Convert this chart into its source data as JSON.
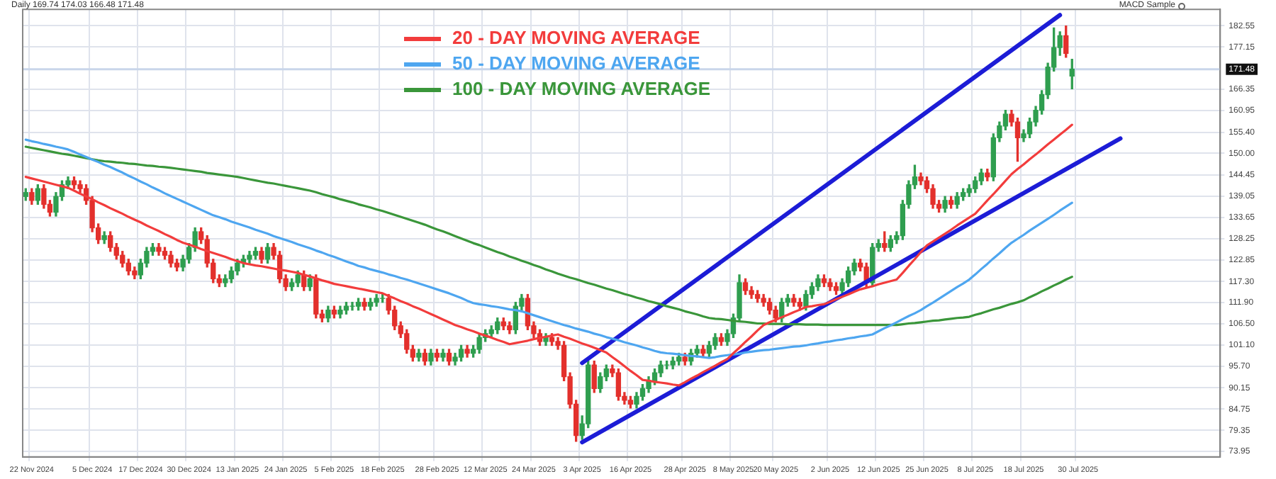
{
  "chart_data": {
    "type": "candlestick",
    "title": "Daily 169.74 174.03 166.48 171.48",
    "annotations": [
      "MACD Sample"
    ],
    "categories": [
      null,
      "22 Nov 2024",
      null,
      null,
      null,
      null,
      null,
      null,
      null,
      null,
      null,
      "5 Dec 2024",
      null,
      null,
      null,
      null,
      null,
      null,
      null,
      "17 Dec 2024",
      null,
      null,
      null,
      null,
      null,
      null,
      null,
      "30 Dec 2024",
      null,
      null,
      null,
      null,
      null,
      null,
      null,
      "13 Jan 2025",
      null,
      null,
      null,
      null,
      null,
      null,
      null,
      "24 Jan 2025",
      null,
      null,
      null,
      null,
      null,
      null,
      null,
      "5 Feb 2025",
      null,
      null,
      null,
      null,
      null,
      null,
      null,
      "18 Feb 2025",
      null,
      null,
      null,
      null,
      null,
      null,
      null,
      null,
      "28 Feb 2025",
      null,
      null,
      null,
      null,
      null,
      null,
      null,
      "12 Mar 2025",
      null,
      null,
      null,
      null,
      null,
      null,
      null,
      "24 Mar 2025",
      null,
      null,
      null,
      null,
      null,
      null,
      null,
      "3 Apr 2025",
      null,
      null,
      null,
      null,
      null,
      null,
      null,
      "16 Apr 2025",
      null,
      null,
      null,
      null,
      null,
      null,
      null,
      null,
      "28 Apr 2025",
      null,
      null,
      null,
      null,
      null,
      null,
      null,
      "8 May 2025",
      null,
      null,
      null,
      null,
      null,
      null,
      "20 May 2025",
      null,
      null,
      null,
      null,
      null,
      null,
      null,
      null,
      "2 Jun 2025",
      null,
      null,
      null,
      null,
      null,
      null,
      null,
      "12 Jun 2025",
      null,
      null,
      null,
      null,
      null,
      null,
      null,
      "25 Jun 2025",
      null,
      null,
      null,
      null,
      null,
      null,
      null,
      "8 Jul 2025",
      null,
      null,
      null,
      null,
      null,
      null,
      null,
      "18 Jul 2025",
      null,
      null,
      null,
      null,
      null,
      null,
      null,
      null,
      "30 Jul 2025",
      null,
      null,
      null,
      null,
      null,
      null,
      null,
      null,
      null,
      null,
      null,
      null,
      null,
      null,
      null,
      null,
      null,
      null,
      null,
      null,
      null,
      null,
      null
    ],
    "ohlc": [
      [
        139,
        141,
        138,
        140
      ],
      [
        140,
        141,
        137,
        138
      ],
      [
        138,
        142,
        137,
        141
      ],
      [
        141,
        142,
        136,
        137
      ],
      [
        137,
        138,
        134,
        135
      ],
      [
        135,
        140,
        134,
        139
      ],
      [
        139,
        143,
        138,
        142
      ],
      [
        142,
        144,
        141,
        143
      ],
      [
        143,
        144,
        141,
        142
      ],
      [
        142,
        143,
        140,
        141
      ],
      [
        141,
        142,
        137,
        138
      ],
      [
        138,
        139,
        130,
        131
      ],
      [
        131,
        132,
        127,
        128
      ],
      [
        128,
        130,
        127,
        129
      ],
      [
        129,
        130,
        125,
        126
      ],
      [
        126,
        127,
        123,
        124
      ],
      [
        124,
        125,
        121,
        122
      ],
      [
        122,
        123,
        119,
        120
      ],
      [
        120,
        121,
        118,
        119
      ],
      [
        119,
        123,
        118,
        122
      ],
      [
        122,
        126,
        121,
        125
      ],
      [
        125,
        127,
        124,
        126
      ],
      [
        126,
        127,
        124,
        125
      ],
      [
        125,
        126,
        123,
        124
      ],
      [
        124,
        125,
        121,
        122
      ],
      [
        122,
        123,
        120,
        121
      ],
      [
        121,
        124,
        120,
        123
      ],
      [
        123,
        127,
        122,
        126
      ],
      [
        126,
        131,
        125,
        130
      ],
      [
        130,
        131,
        127,
        128
      ],
      [
        128,
        129,
        121,
        122
      ],
      [
        122,
        123,
        117,
        118
      ],
      [
        118,
        119,
        116,
        117
      ],
      [
        117,
        119,
        116,
        118
      ],
      [
        118,
        121,
        117,
        120
      ],
      [
        120,
        123,
        119,
        122
      ],
      [
        122,
        124,
        121,
        123
      ],
      [
        123,
        125,
        122,
        124
      ],
      [
        124,
        126,
        123,
        125
      ],
      [
        125,
        126,
        122,
        123
      ],
      [
        123,
        127,
        122,
        126
      ],
      [
        126,
        127,
        123,
        124
      ],
      [
        124,
        125,
        117,
        118
      ],
      [
        118,
        119,
        115,
        116
      ],
      [
        116,
        118,
        115,
        117
      ],
      [
        117,
        120,
        116,
        119
      ],
      [
        119,
        120,
        115,
        116
      ],
      [
        116,
        119,
        115,
        118
      ],
      [
        118,
        119,
        108,
        109
      ],
      [
        109,
        110,
        107,
        108
      ],
      [
        108,
        111,
        107,
        110
      ],
      [
        110,
        111,
        108,
        109
      ],
      [
        109,
        111,
        108,
        110
      ],
      [
        110,
        112,
        109,
        111
      ],
      [
        111,
        112,
        110,
        111
      ],
      [
        111,
        113,
        110,
        112
      ],
      [
        112,
        113,
        110,
        111
      ],
      [
        111,
        113,
        110,
        112
      ],
      [
        112,
        114,
        111,
        113
      ],
      [
        113,
        114,
        112,
        113
      ],
      [
        113,
        114,
        109,
        110
      ],
      [
        110,
        111,
        105,
        106
      ],
      [
        106,
        107,
        103,
        104
      ],
      [
        104,
        105,
        99,
        100
      ],
      [
        100,
        101,
        97,
        98
      ],
      [
        98,
        100,
        97,
        99
      ],
      [
        99,
        100,
        96,
        97
      ],
      [
        97,
        100,
        96,
        99
      ],
      [
        99,
        100,
        97,
        98
      ],
      [
        98,
        100,
        97,
        99
      ],
      [
        99,
        100,
        96,
        97
      ],
      [
        97,
        99,
        96,
        98
      ],
      [
        98,
        101,
        97,
        100
      ],
      [
        100,
        101,
        98,
        99
      ],
      [
        99,
        101,
        98,
        100
      ],
      [
        100,
        104,
        99,
        103
      ],
      [
        103,
        105,
        102,
        104
      ],
      [
        104,
        106,
        103,
        105
      ],
      [
        105,
        108,
        104,
        107
      ],
      [
        107,
        108,
        105,
        106
      ],
      [
        106,
        107,
        104,
        105
      ],
      [
        105,
        112,
        104,
        111
      ],
      [
        111,
        114,
        110,
        113
      ],
      [
        113,
        114,
        105,
        106
      ],
      [
        106,
        107,
        103,
        104
      ],
      [
        104,
        105,
        101,
        102
      ],
      [
        102,
        104,
        101,
        103
      ],
      [
        103,
        104,
        101,
        102
      ],
      [
        102,
        103,
        100,
        101
      ],
      [
        101,
        102,
        92,
        93
      ],
      [
        93,
        94,
        85,
        86
      ],
      [
        86,
        87,
        76.5,
        78
      ],
      [
        78,
        83,
        77,
        81
      ],
      [
        81,
        97,
        80,
        96
      ],
      [
        96,
        97,
        89,
        90
      ],
      [
        90,
        94,
        89,
        93
      ],
      [
        93,
        96,
        92,
        95
      ],
      [
        95,
        96,
        93,
        94
      ],
      [
        94,
        95,
        87,
        88
      ],
      [
        88,
        89,
        86,
        87
      ],
      [
        87,
        88,
        85,
        86
      ],
      [
        86,
        89,
        85,
        88
      ],
      [
        88,
        91,
        87,
        90
      ],
      [
        90,
        93,
        89,
        92
      ],
      [
        92,
        95,
        91,
        94
      ],
      [
        94,
        97,
        93,
        96
      ],
      [
        96,
        97,
        95,
        96
      ],
      [
        96,
        98,
        95,
        97
      ],
      [
        97,
        99,
        96,
        98
      ],
      [
        98,
        99,
        96,
        97
      ],
      [
        97,
        100,
        96,
        99
      ],
      [
        99,
        101,
        98,
        100
      ],
      [
        100,
        101,
        98,
        99
      ],
      [
        99,
        102,
        98,
        101
      ],
      [
        101,
        104,
        100,
        103
      ],
      [
        103,
        104,
        101,
        102
      ],
      [
        102,
        105,
        101,
        104
      ],
      [
        104,
        109,
        103,
        108
      ],
      [
        108,
        119,
        107,
        117
      ],
      [
        117,
        118,
        114,
        115
      ],
      [
        115,
        116,
        113,
        114
      ],
      [
        114,
        115,
        112,
        113
      ],
      [
        113,
        114,
        111,
        112
      ],
      [
        112,
        113,
        109,
        110
      ],
      [
        110,
        111,
        107,
        108
      ],
      [
        108,
        113,
        107,
        112
      ],
      [
        112,
        114,
        111,
        113
      ],
      [
        113,
        114,
        111,
        112
      ],
      [
        112,
        113,
        110,
        111
      ],
      [
        111,
        115,
        110,
        114
      ],
      [
        114,
        117,
        113,
        116
      ],
      [
        116,
        119,
        115,
        118
      ],
      [
        118,
        119,
        116,
        117
      ],
      [
        117,
        118,
        115,
        116
      ],
      [
        116,
        117,
        114,
        115
      ],
      [
        115,
        118,
        114,
        117
      ],
      [
        117,
        121,
        116,
        120
      ],
      [
        120,
        123,
        119,
        122
      ],
      [
        122,
        123,
        120,
        121
      ],
      [
        121,
        122,
        116,
        117
      ],
      [
        117,
        127,
        116,
        126
      ],
      [
        126,
        128,
        125,
        127
      ],
      [
        127,
        130,
        125,
        126
      ],
      [
        126,
        129,
        125,
        128
      ],
      [
        128,
        130,
        127,
        129
      ],
      [
        129,
        138,
        128,
        137
      ],
      [
        137,
        143,
        136,
        142
      ],
      [
        142,
        147,
        141,
        144
      ],
      [
        144,
        145,
        142,
        143
      ],
      [
        143,
        144,
        140,
        141
      ],
      [
        141,
        142,
        136,
        137
      ],
      [
        137,
        138,
        135,
        136
      ],
      [
        136,
        139,
        135,
        138
      ],
      [
        138,
        139,
        136,
        137
      ],
      [
        137,
        140,
        136,
        139
      ],
      [
        139,
        141,
        138,
        140
      ],
      [
        140,
        142,
        139,
        141
      ],
      [
        141,
        144,
        140,
        143
      ],
      [
        143,
        146,
        142,
        145
      ],
      [
        145,
        146,
        143,
        144
      ],
      [
        144,
        155,
        143,
        154
      ],
      [
        154,
        158,
        153,
        157
      ],
      [
        157,
        161,
        156,
        160
      ],
      [
        160,
        161,
        157,
        158
      ],
      [
        158,
        159,
        148,
        154
      ],
      [
        154,
        156,
        153,
        155
      ],
      [
        155,
        159,
        154,
        158
      ],
      [
        158,
        162,
        157,
        161
      ],
      [
        161,
        166,
        160,
        165
      ],
      [
        165,
        173,
        164,
        172
      ],
      [
        172,
        182,
        171,
        177
      ],
      [
        177,
        181,
        175,
        180
      ],
      [
        180,
        182.5,
        174.5,
        175.5
      ],
      [
        169.74,
        174.03,
        166.48,
        171.48
      ],
      null,
      null,
      null,
      null,
      null,
      null,
      null,
      null,
      null,
      null,
      null,
      null,
      null,
      null,
      null,
      null,
      null,
      null,
      null,
      null,
      null,
      null,
      null,
      null
    ],
    "series": [
      {
        "type": "line",
        "name": "20 - DAY MOVING AVERAGE",
        "color": "#f23c3c",
        "values": [
          144,
          143.6,
          143.2,
          142.8,
          142.4,
          142,
          141.6,
          141.2,
          140.5,
          139.7,
          139,
          138.3,
          137.5,
          136.8,
          136,
          135.3,
          134.6,
          133.8,
          133.1,
          132.4,
          131.6,
          130.9,
          130.2,
          129.4,
          128.7,
          127.9,
          127.2,
          126.7,
          126.2,
          125.6,
          125.1,
          124.6,
          124.1,
          123.6,
          123,
          122.5,
          122,
          121.7,
          121.4,
          121.2,
          120.9,
          120.6,
          120.3,
          120.1,
          119.8,
          119.5,
          119,
          118.6,
          118.1,
          117.6,
          117.2,
          116.7,
          116.4,
          116.1,
          115.8,
          115.5,
          115.2,
          114.9,
          114.6,
          114.3,
          113.6,
          113,
          112.3,
          111.7,
          111,
          110.4,
          109.7,
          109,
          108.3,
          107.6,
          106.9,
          106.2,
          105.7,
          105.1,
          104.6,
          104,
          103.5,
          103,
          102.4,
          101.9,
          101.3,
          101.6,
          101.9,
          102.2,
          102.6,
          102.9,
          103.2,
          103.5,
          103.8,
          103.2,
          102.7,
          102.1,
          101.5,
          101,
          100.4,
          99.8,
          99.2,
          98,
          96.9,
          95.7,
          94.5,
          93.4,
          92.2,
          92,
          91.7,
          91.5,
          91.3,
          91,
          90.8,
          91.6,
          92.5,
          93.3,
          94.2,
          95,
          95.8,
          96.7,
          97.5,
          99,
          100.4,
          101.9,
          103.3,
          104.8,
          106.2,
          106.9,
          107.5,
          108.2,
          108.8,
          109.5,
          110.1,
          110.8,
          111,
          111.3,
          111.5,
          112.1,
          112.8,
          113.4,
          114,
          114.7,
          115.3,
          115.7,
          116.1,
          116.6,
          117,
          117.4,
          117.8,
          119.5,
          121.3,
          123,
          124.8,
          126.5,
          127.5,
          128.5,
          129.5,
          130.5,
          131.6,
          132.6,
          133.6,
          134.6,
          136.3,
          138,
          139.6,
          141.3,
          143,
          144.7,
          146,
          147.2,
          148.5,
          149.7,
          151,
          152.3,
          153.5,
          154.8,
          156,
          157.3,
          null,
          null,
          null,
          null,
          null,
          null,
          null,
          null,
          null,
          null,
          null,
          null,
          null,
          null,
          null,
          null,
          null,
          null,
          null,
          null,
          null,
          null,
          null,
          null
        ]
      },
      {
        "type": "line",
        "name": "50 - DAY MOVING AVERAGE",
        "color": "#4ea6f0",
        "values": [
          153.5,
          153.1,
          152.8,
          152.4,
          152.1,
          151.7,
          151.4,
          151,
          150.4,
          149.7,
          149.1,
          148.4,
          147.8,
          147.1,
          146.5,
          145.8,
          145.1,
          144.3,
          143.6,
          142.8,
          142.1,
          141.3,
          140.6,
          139.8,
          139.1,
          138.4,
          137.7,
          137,
          136.3,
          135.6,
          134.9,
          134.2,
          133.7,
          133.2,
          132.6,
          132.1,
          131.6,
          131.1,
          130.5,
          130,
          129.5,
          128.9,
          128.4,
          127.9,
          127.4,
          126.8,
          126.3,
          125.8,
          125.2,
          124.7,
          124.1,
          123.6,
          123,
          122.4,
          121.9,
          121.3,
          120.9,
          120.4,
          120,
          119.6,
          119.1,
          118.7,
          118.2,
          117.8,
          117.3,
          116.8,
          116.3,
          115.8,
          115.3,
          114.8,
          114.3,
          113.7,
          113.1,
          112.4,
          111.8,
          111.5,
          111.3,
          111,
          110.8,
          110.5,
          110.2,
          110,
          109.7,
          109.2,
          108.7,
          108.2,
          107.7,
          107.2,
          106.7,
          106.2,
          105.8,
          105.3,
          104.9,
          104.5,
          104,
          103.6,
          103.1,
          102.7,
          102.3,
          101.8,
          101.4,
          101,
          100.5,
          100.1,
          99.6,
          99.2,
          99,
          98.9,
          98.7,
          98.5,
          98.3,
          98.2,
          98,
          97.8,
          98,
          98.3,
          98.5,
          98.7,
          98.9,
          99.2,
          99.4,
          99.6,
          99.8,
          99.9,
          100.1,
          100.3,
          100.5,
          100.7,
          100.8,
          101,
          101.3,
          101.5,
          101.8,
          102,
          102.3,
          102.5,
          102.8,
          103,
          103.3,
          103.5,
          103.8,
          104.6,
          105.4,
          106.1,
          106.9,
          107.7,
          108.5,
          109.2,
          110,
          111,
          111.9,
          112.9,
          113.9,
          114.9,
          115.9,
          116.8,
          117.8,
          119.1,
          120.5,
          121.8,
          123.2,
          124.5,
          125.9,
          127.2,
          128.2,
          129.2,
          130.3,
          131.3,
          132.3,
          133.3,
          134.3,
          135.4,
          136.4,
          137.4,
          null,
          null,
          null,
          null,
          null,
          null,
          null,
          null,
          null,
          null,
          null,
          null,
          null,
          null,
          null,
          null,
          null,
          null,
          null,
          null,
          null,
          null,
          null,
          null
        ]
      },
      {
        "type": "line",
        "name": "100 - DAY MOVING AVERAGE",
        "color": "#3a963a",
        "values": [
          151.7,
          151.4,
          151.1,
          150.8,
          150.5,
          150.2,
          149.9,
          149.7,
          149.4,
          149.1,
          148.8,
          148.5,
          148.2,
          148,
          147.9,
          147.7,
          147.6,
          147.4,
          147.3,
          147.1,
          146.9,
          146.8,
          146.6,
          146.5,
          146.3,
          146.1,
          145.9,
          145.7,
          145.5,
          145.3,
          145,
          144.8,
          144.6,
          144.4,
          144.2,
          144,
          143.7,
          143.4,
          143.1,
          142.8,
          142.5,
          142.3,
          142,
          141.7,
          141.4,
          141.1,
          140.8,
          140.5,
          140.1,
          139.6,
          139.2,
          138.8,
          138.3,
          137.9,
          137.5,
          137,
          136.6,
          136.2,
          135.7,
          135.3,
          134.8,
          134.3,
          133.8,
          133.3,
          132.8,
          132.3,
          131.8,
          131.2,
          130.6,
          130.1,
          129.5,
          128.9,
          128.3,
          127.7,
          127.1,
          126.6,
          126,
          125.4,
          124.8,
          124.3,
          123.7,
          123.2,
          122.6,
          122.1,
          121.5,
          121,
          120.4,
          119.9,
          119.3,
          118.8,
          118.3,
          117.9,
          117.4,
          116.9,
          116.5,
          116,
          115.5,
          115.1,
          114.6,
          114.1,
          113.7,
          113.2,
          112.8,
          112.3,
          111.9,
          111.5,
          111,
          110.6,
          110.2,
          109.7,
          109.3,
          108.9,
          108.4,
          108,
          107.8,
          107.7,
          107.5,
          107.3,
          107.1,
          107,
          106.8,
          106.6,
          106.6,
          106.5,
          106.5,
          106.5,
          106.4,
          106.4,
          106.4,
          106.3,
          106.3,
          106.3,
          106.2,
          106.2,
          106.2,
          106.2,
          106.2,
          106.2,
          106.2,
          106.2,
          106.2,
          106.2,
          106.2,
          106.2,
          106.2,
          106.4,
          106.6,
          106.7,
          106.9,
          107.1,
          107.3,
          107.4,
          107.6,
          107.8,
          108,
          108.1,
          108.3,
          108.8,
          109.2,
          109.7,
          110.2,
          110.6,
          111.1,
          111.6,
          112,
          112.5,
          113.3,
          114,
          114.8,
          115.5,
          116.3,
          117,
          117.8,
          118.5,
          null,
          null,
          null,
          null,
          null,
          null,
          null,
          null,
          null,
          null,
          null,
          null,
          null,
          null,
          null,
          null,
          null,
          null,
          null,
          null,
          null,
          null,
          null,
          null
        ]
      },
      {
        "type": "line",
        "color": "#1c1cd6",
        "values": [
          null,
          null,
          null,
          null,
          null,
          null,
          null,
          null,
          null,
          null,
          null,
          null,
          null,
          null,
          null,
          null,
          null,
          null,
          null,
          null,
          null,
          null,
          null,
          null,
          null,
          null,
          null,
          null,
          null,
          null,
          null,
          null,
          null,
          null,
          null,
          null,
          null,
          null,
          null,
          null,
          null,
          null,
          null,
          null,
          null,
          null,
          null,
          null,
          null,
          null,
          null,
          null,
          null,
          null,
          null,
          null,
          null,
          null,
          null,
          null,
          null,
          null,
          null,
          null,
          null,
          null,
          null,
          null,
          null,
          null,
          null,
          null,
          null,
          null,
          null,
          null,
          null,
          null,
          null,
          null,
          null,
          null,
          null,
          null,
          null,
          null,
          null,
          null,
          null,
          null,
          null,
          null,
          96.5,
          null,
          null,
          null,
          null,
          null,
          null,
          null,
          null,
          null,
          null,
          null,
          null,
          null,
          null,
          null,
          null,
          null,
          null,
          null,
          null,
          null,
          null,
          null,
          null,
          null,
          null,
          null,
          null,
          null,
          null,
          null,
          null,
          null,
          null,
          null,
          null,
          null,
          null,
          null,
          null,
          null,
          null,
          null,
          null,
          null,
          null,
          null,
          null,
          null,
          null,
          null,
          null,
          null,
          null,
          null,
          null,
          null,
          null,
          null,
          null,
          null,
          null,
          null,
          null,
          null,
          null,
          null,
          null,
          null,
          null,
          null,
          null,
          null,
          null,
          null,
          null,
          null,
          null,
          185.3,
          null,
          null,
          null,
          null,
          null,
          null,
          null,
          null,
          null,
          null,
          null,
          null,
          null,
          null,
          null,
          null,
          null,
          null,
          null,
          null,
          null,
          null,
          null,
          null,
          null,
          null
        ]
      },
      {
        "type": "line",
        "color": "#1c1cd6",
        "values": [
          null,
          null,
          null,
          null,
          null,
          null,
          null,
          null,
          null,
          null,
          null,
          null,
          null,
          null,
          null,
          null,
          null,
          null,
          null,
          null,
          null,
          null,
          null,
          null,
          null,
          null,
          null,
          null,
          null,
          null,
          null,
          null,
          null,
          null,
          null,
          null,
          null,
          null,
          null,
          null,
          null,
          null,
          null,
          null,
          null,
          null,
          null,
          null,
          null,
          null,
          null,
          null,
          null,
          null,
          null,
          null,
          null,
          null,
          null,
          null,
          null,
          null,
          null,
          null,
          null,
          null,
          null,
          null,
          null,
          null,
          null,
          null,
          null,
          null,
          null,
          null,
          null,
          null,
          null,
          null,
          null,
          null,
          null,
          null,
          null,
          null,
          null,
          null,
          null,
          null,
          null,
          null,
          76.3,
          null,
          null,
          null,
          null,
          null,
          null,
          null,
          null,
          null,
          null,
          null,
          null,
          null,
          null,
          null,
          null,
          null,
          null,
          null,
          null,
          null,
          null,
          null,
          null,
          null,
          null,
          null,
          null,
          null,
          null,
          null,
          null,
          null,
          null,
          null,
          null,
          null,
          null,
          null,
          null,
          null,
          null,
          null,
          null,
          null,
          null,
          null,
          null,
          null,
          null,
          null,
          null,
          null,
          null,
          null,
          null,
          null,
          null,
          null,
          null,
          null,
          null,
          null,
          null,
          null,
          null,
          null,
          null,
          null,
          null,
          null,
          null,
          null,
          null,
          null,
          null,
          null,
          null,
          null,
          null,
          null,
          null,
          null,
          null,
          null,
          null,
          null,
          null,
          153.8,
          null,
          null,
          null,
          null,
          null,
          null,
          null,
          null,
          null,
          null,
          null,
          null,
          null,
          null,
          null,
          null
        ]
      }
    ],
    "ylim": [
      72.55,
      186.75
    ],
    "yticks": [
      {
        "value": 73.95,
        "label": "73.95"
      },
      {
        "value": 79.35,
        "label": "79.35"
      },
      {
        "value": 84.75,
        "label": "84.75"
      },
      {
        "value": 90.15,
        "label": "90.15"
      },
      {
        "value": 95.7,
        "label": "95.70"
      },
      {
        "value": 101.1,
        "label": "101.10"
      },
      {
        "value": 106.5,
        "label": "106.50"
      },
      {
        "value": 111.9,
        "label": "111.90"
      },
      {
        "value": 117.3,
        "label": "117.30"
      },
      {
        "value": 122.85,
        "label": "122.85"
      },
      {
        "value": 128.25,
        "label": "128.25"
      },
      {
        "value": 133.65,
        "label": "133.65"
      },
      {
        "value": 139.05,
        "label": "139.05"
      },
      {
        "value": 144.45,
        "label": "144.45"
      },
      {
        "value": 150,
        "label": "150.00"
      },
      {
        "value": 155.4,
        "label": "155.40"
      },
      {
        "value": 160.95,
        "label": "160.95"
      },
      {
        "value": 166.35,
        "label": "166.35"
      },
      {
        "value": 177.15,
        "label": "177.15"
      },
      {
        "value": 182.55,
        "label": "182.55"
      }
    ],
    "ref_lines": [
      {
        "axis": "y",
        "value": 171.48,
        "label": "171.48",
        "color": "#c9d6ea"
      }
    ],
    "grid": true,
    "legend": "top"
  }
}
